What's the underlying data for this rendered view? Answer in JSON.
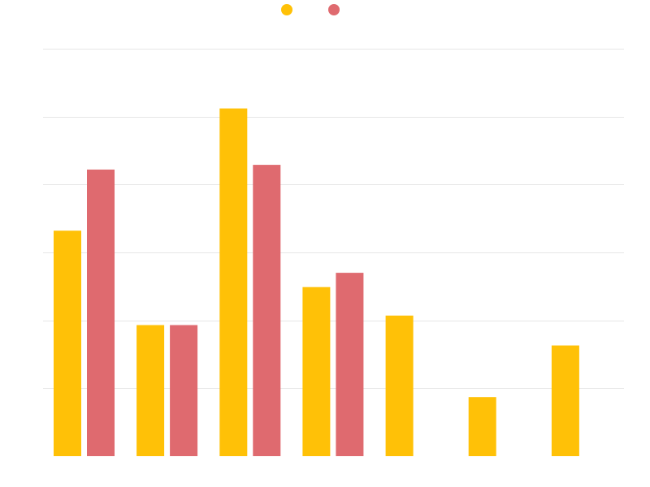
{
  "chart_data": {
    "type": "bar",
    "title": "",
    "xlabel": "",
    "ylabel": "",
    "categories": [
      "",
      "",
      "",
      "",
      "",
      "",
      ""
    ],
    "ylim": [
      0,
      6
    ],
    "grid": true,
    "legend_position": "top-center",
    "series": [
      {
        "color": "#ffc107",
        "values": [
          3.32,
          1.93,
          5.12,
          2.49,
          2.07,
          0.87,
          1.63
        ]
      },
      {
        "color": "#df6a6f",
        "values": [
          4.22,
          1.93,
          4.29,
          2.7,
          null,
          null,
          null
        ]
      }
    ]
  }
}
